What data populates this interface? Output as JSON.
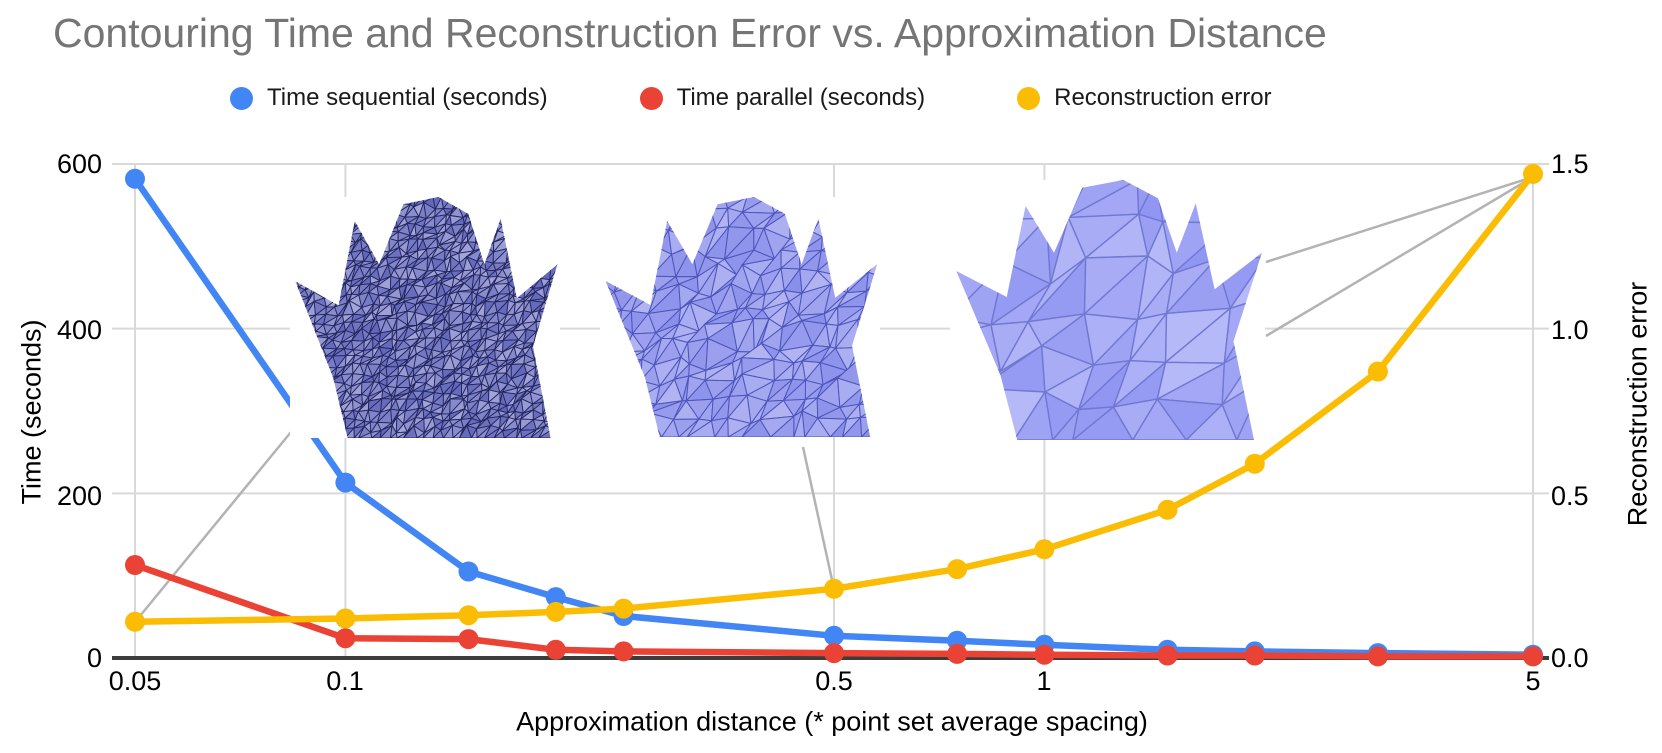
{
  "title": "Contouring Time and Reconstruction Error vs. Approximation Distance",
  "legend": [
    {
      "label": "Time sequential (seconds)",
      "color": "#4285F4"
    },
    {
      "label": "Time parallel (seconds)",
      "color": "#EA4335"
    },
    {
      "label": "Reconstruction error",
      "color": "#FBBC04"
    }
  ],
  "axes": {
    "x": {
      "title": "Approximation distance (* point set average spacing)",
      "scale": "log",
      "ticks": [
        "0.05",
        "0.1",
        "0.5",
        "1",
        "5"
      ],
      "tick_values": [
        0.05,
        0.1,
        0.5,
        1,
        5
      ]
    },
    "y_left": {
      "title": "Time (seconds)",
      "ticks": [
        "600",
        "400",
        "200",
        "0"
      ],
      "tick_values": [
        600,
        400,
        200,
        0
      ],
      "range": [
        0,
        600
      ]
    },
    "y_right": {
      "title": "Reconstruction error",
      "ticks": [
        "1.5",
        "1.0",
        "0.5",
        "0.0"
      ],
      "tick_values": [
        1.5,
        1.0,
        0.5,
        0.0
      ],
      "range": [
        0,
        1.5
      ]
    }
  },
  "chart_data": {
    "type": "line",
    "title": "Contouring Time and Reconstruction Error vs. Approximation Distance",
    "xlabel": "Approximation distance (* point set average spacing)",
    "ylabel_left": "Time (seconds)",
    "ylabel_right": "Reconstruction error",
    "x_scale": "log",
    "xlim": [
      0.05,
      5
    ],
    "ylim_left": [
      0,
      600
    ],
    "ylim_right": [
      0,
      1.5
    ],
    "grid": true,
    "legend_position": "top",
    "x": [
      0.05,
      0.1,
      0.15,
      0.2,
      0.25,
      0.5,
      0.75,
      1,
      1.5,
      2,
      3,
      5
    ],
    "series": [
      {
        "name": "Time sequential (seconds)",
        "axis": "left",
        "color": "#4285F4",
        "values": [
          582,
          213,
          105,
          74,
          51,
          27,
          21,
          16,
          10,
          8,
          6,
          4
        ]
      },
      {
        "name": "Time parallel (seconds)",
        "axis": "left",
        "color": "#EA4335",
        "values": [
          113,
          24,
          23,
          10,
          8,
          6,
          5,
          4,
          3,
          3,
          2,
          2
        ]
      },
      {
        "name": "Reconstruction error",
        "axis": "right",
        "color": "#FBBC04",
        "values": [
          0.11,
          0.12,
          0.13,
          0.14,
          0.15,
          0.21,
          0.27,
          0.33,
          0.45,
          0.59,
          0.87,
          1.47
        ]
      }
    ]
  },
  "insets": [
    {
      "name": "mesh-render-dense",
      "description": "dense triangle mesh reconstruction"
    },
    {
      "name": "mesh-render-medium",
      "description": "medium triangle mesh reconstruction"
    },
    {
      "name": "mesh-render-coarse",
      "description": "coarse triangle mesh reconstruction"
    }
  ],
  "colors": {
    "grid": "#d9d9d9",
    "axis_line": "#3c3c3c",
    "connector": "#b3b3b3",
    "title": "#757575"
  }
}
